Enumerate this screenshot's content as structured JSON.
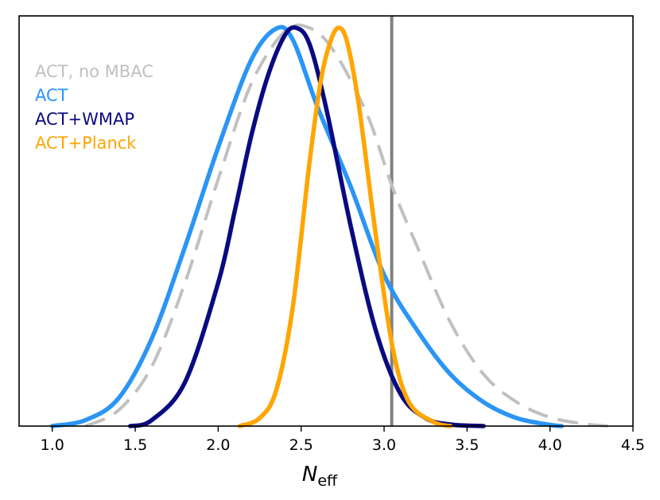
{
  "chart_data": {
    "type": "line",
    "title": "",
    "xlabel": "N",
    "xlabel_subscript": "eff",
    "ylabel": "",
    "xlim": [
      0.8,
      4.5
    ],
    "ylim": [
      0,
      1.03
    ],
    "xticks": [
      1.0,
      1.5,
      2.0,
      2.5,
      3.0,
      3.5,
      4.0,
      4.5
    ],
    "xtick_labels": [
      "1.0",
      "1.5",
      "2.0",
      "2.5",
      "3.0",
      "3.5",
      "4.0",
      "4.5"
    ],
    "legend_position": "top-left",
    "reference_line": {
      "x": 3.046,
      "color": "#808080"
    },
    "series": [
      {
        "name": "ACT, no MBAC",
        "color": "#c0c0c0",
        "dashed": true,
        "x": [
          1.2,
          1.4,
          1.6,
          1.8,
          2.0,
          2.2,
          2.4,
          2.55,
          2.7,
          2.9,
          3.05,
          3.2,
          3.4,
          3.6,
          3.8,
          4.0,
          4.2,
          4.35
        ],
        "y": [
          0.0,
          0.04,
          0.15,
          0.36,
          0.62,
          0.86,
          0.99,
          1.0,
          0.94,
          0.78,
          0.6,
          0.45,
          0.26,
          0.13,
          0.06,
          0.022,
          0.006,
          0.0
        ]
      },
      {
        "name": "ACT",
        "color": "#2b95f5",
        "dashed": false,
        "x": [
          1.0,
          1.2,
          1.4,
          1.6,
          1.8,
          2.0,
          2.2,
          2.35,
          2.45,
          2.6,
          2.8,
          3.0,
          3.2,
          3.4,
          3.6,
          3.8,
          4.0,
          4.07
        ],
        "y": [
          0.0,
          0.015,
          0.07,
          0.22,
          0.45,
          0.7,
          0.92,
          0.998,
          0.97,
          0.8,
          0.6,
          0.38,
          0.24,
          0.13,
          0.06,
          0.02,
          0.003,
          0.0
        ]
      },
      {
        "name": "ACT+WMAP",
        "color": "#0a0a80",
        "dashed": false,
        "x": [
          1.47,
          1.6,
          1.8,
          2.0,
          2.1,
          2.2,
          2.3,
          2.4,
          2.47,
          2.55,
          2.65,
          2.8,
          2.95,
          3.1,
          3.25,
          3.4,
          3.6
        ],
        "y": [
          0.0,
          0.015,
          0.11,
          0.36,
          0.54,
          0.73,
          0.88,
          0.98,
          1.0,
          0.96,
          0.8,
          0.5,
          0.24,
          0.08,
          0.02,
          0.004,
          0.0
        ]
      },
      {
        "name": "ACT+Planck",
        "color": "#ffa500",
        "dashed": false,
        "x": [
          2.13,
          2.25,
          2.35,
          2.45,
          2.55,
          2.62,
          2.68,
          2.73,
          2.78,
          2.85,
          2.95,
          3.05,
          3.15,
          3.3,
          3.4
        ],
        "y": [
          0.0,
          0.02,
          0.09,
          0.3,
          0.66,
          0.87,
          0.97,
          1.0,
          0.96,
          0.8,
          0.48,
          0.2,
          0.06,
          0.01,
          0.0
        ]
      }
    ]
  }
}
